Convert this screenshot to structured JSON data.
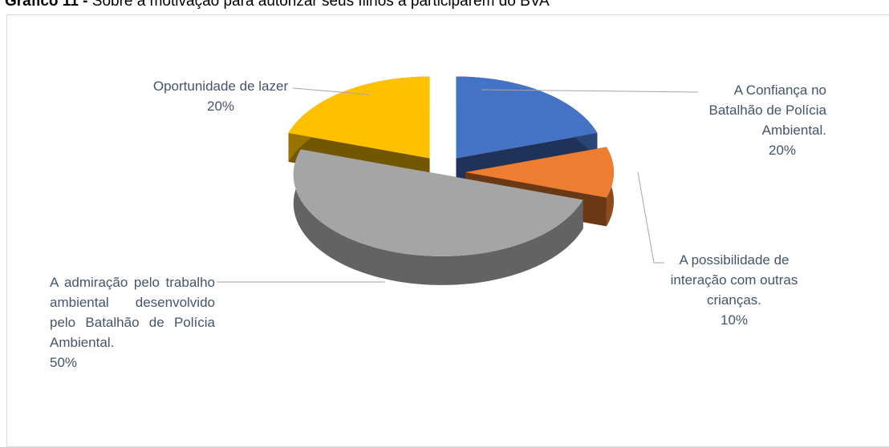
{
  "chart_data": {
    "type": "pie3d",
    "figure_label": "Gráfico 11 -",
    "title": "Sobre a motivação para autorizar seus filhos a participarem do BVA",
    "categories": [
      "A Confiança no Batalhão de Polícia Ambiental.",
      "A possibilidade de interação com outras crianças.",
      "A admiração pelo trabalho ambiental desenvolvido pelo Batalhão de Polícia Ambiental.",
      "Oportunidade de lazer"
    ],
    "values": [
      20,
      10,
      50,
      20
    ],
    "value_labels": [
      "20%",
      "10%",
      "50%",
      "20%"
    ],
    "colors": [
      "#4472c4",
      "#ed7d31",
      "#a5a5a5",
      "#ffc000"
    ]
  }
}
